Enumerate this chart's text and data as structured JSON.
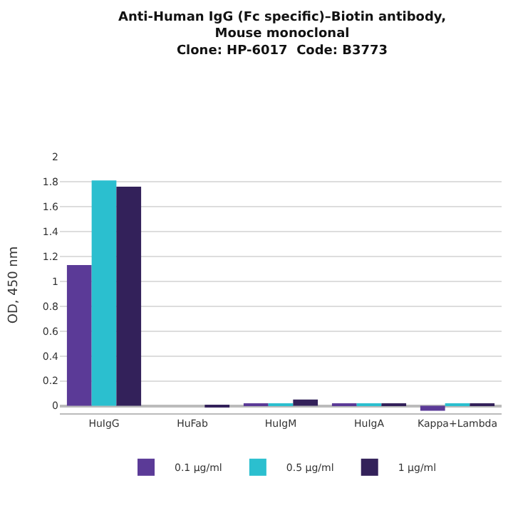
{
  "chart_data": {
    "type": "bar",
    "title": "Anti-Human IgG (Fc specific)–Biotin antibody,\nMouse monoclonal\nClone: HP-6017  Code: B3773",
    "ylabel": "OD, 450 nm",
    "categories": [
      "HuIgG",
      "HuFab",
      "HuIgM",
      "HuIgA",
      "Kappa+Lambda"
    ],
    "series": [
      {
        "name": "0.1 µg/ml",
        "color": "#5b3a97",
        "values": [
          1.13,
          0,
          0.02,
          0.01,
          -0.04
        ]
      },
      {
        "name": "0.5 µg/ml",
        "color": "#2bbfcf",
        "values": [
          1.81,
          0,
          0.02,
          0.01,
          0.01
        ]
      },
      {
        "name": "1 µg/ml",
        "color": "#33215a",
        "values": [
          1.76,
          -0.01,
          0.05,
          0.01,
          0.01
        ]
      }
    ],
    "ylim": [
      -0.06,
      2
    ],
    "yticks": [
      0,
      0.2,
      0.4,
      0.6,
      0.8,
      1,
      1.2,
      1.4,
      1.6,
      1.8,
      2
    ],
    "grid": "y",
    "legend": "bottom"
  }
}
